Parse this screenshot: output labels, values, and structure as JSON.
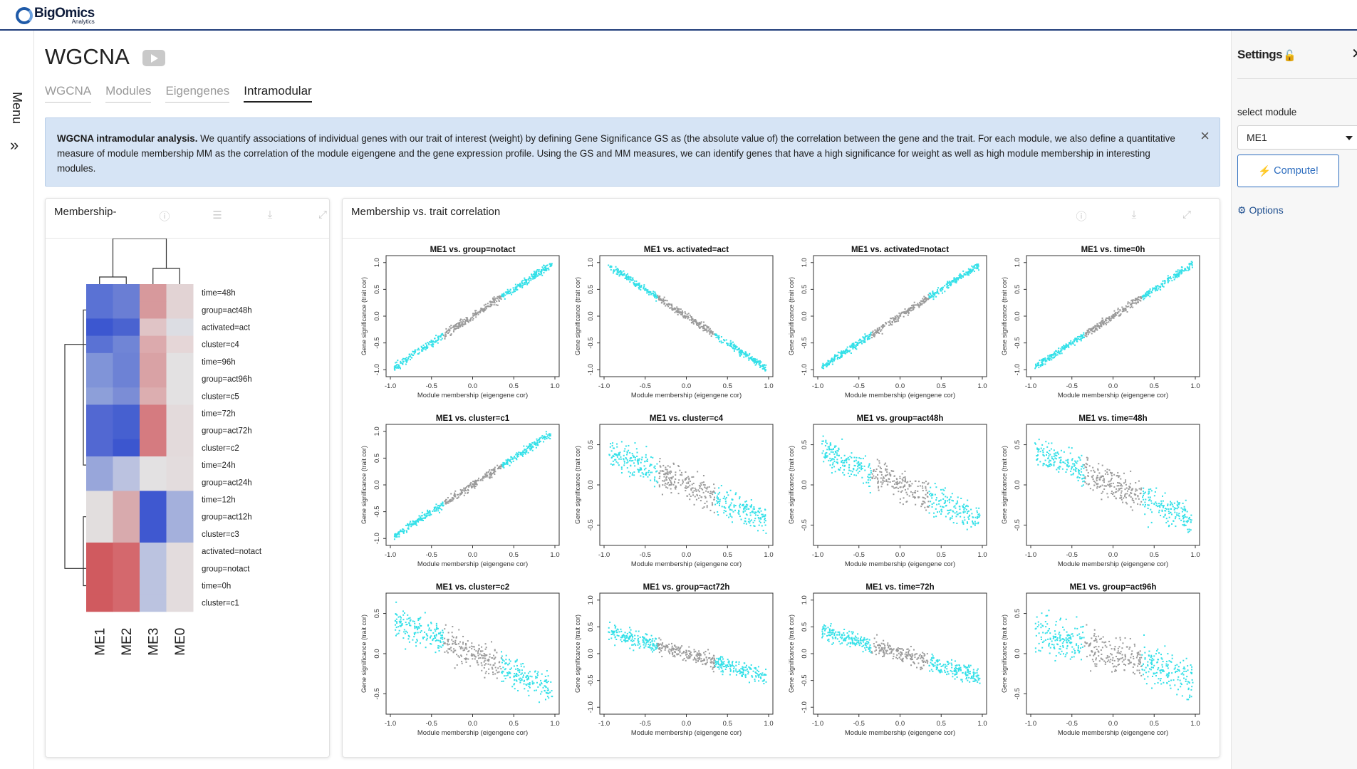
{
  "logo": {
    "brand": "BigOmics",
    "sub": "Analytics"
  },
  "menu": {
    "label": "Menu",
    "chevron": "»"
  },
  "page": {
    "title": "WGCNA"
  },
  "tabs": [
    {
      "label": "WGCNA",
      "active": false
    },
    {
      "label": "Modules",
      "active": false
    },
    {
      "label": "Eigengenes",
      "active": false
    },
    {
      "label": "Intramodular",
      "active": true
    }
  ],
  "info": {
    "bold": "WGCNA intramodular analysis.",
    "text": " We quantify associations of individual genes with our trait of interest (weight) by defining Gene Significance GS as (the absolute value of) the correlation between the gene and the trait. For each module, we also define a quantitative measure of module membership MM as the correlation of the module eigengene and the gene expression profile. Using the GS and MM measures, we can identify genes that have a high significance for weight as well as high module membership in interesting modules.",
    "close_icon": "×"
  },
  "membership_card": {
    "title": "Membership-",
    "row_labels": [
      "time=48h",
      "group=act48h",
      "activated=act",
      "cluster=c4",
      "time=96h",
      "group=act96h",
      "cluster=c5",
      "time=72h",
      "group=act72h",
      "cluster=c2",
      "time=24h",
      "group=act24h",
      "time=12h",
      "group=act12h",
      "cluster=c3",
      "activated=notact",
      "group=notact",
      "time=0h",
      "cluster=c1"
    ],
    "col_labels": [
      "ME1",
      "ME2",
      "ME3",
      "ME0"
    ],
    "heatmap_colors": [
      [
        "#5a72d4",
        "#6a7ed4",
        "#d7999c",
        "#e2d3d4"
      ],
      [
        "#5a72d4",
        "#6a7ed4",
        "#d7999c",
        "#e2d3d4"
      ],
      [
        "#3c57d0",
        "#4a63d0",
        "#e0c4c6",
        "#dcdde3"
      ],
      [
        "#5a72d4",
        "#7085d6",
        "#dcaaad",
        "#e5d6d7"
      ],
      [
        "#8094d8",
        "#6d82d5",
        "#d9a2a5",
        "#e3e1e2"
      ],
      [
        "#8094d8",
        "#6d82d5",
        "#d9a2a5",
        "#e3e1e2"
      ],
      [
        "#8d9fd9",
        "#7b8dd6",
        "#dcaeb0",
        "#e3e1e2"
      ],
      [
        "#5268d2",
        "#4660d0",
        "#d57b80",
        "#e3dadb"
      ],
      [
        "#5268d2",
        "#4660d0",
        "#d57b80",
        "#e3dadb"
      ],
      [
        "#5268d2",
        "#3c56cf",
        "#d57b80",
        "#e3dadb"
      ],
      [
        "#98a6da",
        "#bbc2e0",
        "#e3e1e2",
        "#e3dcdd"
      ],
      [
        "#98a6da",
        "#bbc2e0",
        "#e3e1e2",
        "#e3dcdd"
      ],
      [
        "#e2dede",
        "#d8aaad",
        "#3f58d0",
        "#a4b0dc"
      ],
      [
        "#e2dede",
        "#d8aaad",
        "#3f58d0",
        "#a4b0dc"
      ],
      [
        "#e2dede",
        "#d8aaad",
        "#3f58d0",
        "#a4b0dc"
      ],
      [
        "#d05a5f",
        "#d4686d",
        "#bbc3e0",
        "#e3dcdd"
      ],
      [
        "#d05a5f",
        "#d4686d",
        "#bbc3e0",
        "#e3dcdd"
      ],
      [
        "#d05a5f",
        "#d4686d",
        "#bbc3e0",
        "#e3dcdd"
      ],
      [
        "#d05a5f",
        "#d4686d",
        "#bbc3e0",
        "#e3dcdd"
      ]
    ]
  },
  "corr_card": {
    "title": "Membership vs. trait correlation",
    "xlabel": "Module membership (eigengene cor)",
    "ylabel": "Gene significance (trait cor)",
    "x_ticks": [
      "-1.0",
      "-0.5",
      "0.0",
      "0.5",
      "1.0"
    ],
    "point_colors": {
      "module": "#33e0e8",
      "other": "#9a9a9a"
    },
    "plots": [
      {
        "title": "ME1 vs. group=notact",
        "y_ticks": [
          "-1.0",
          "-0.5",
          "0.0",
          "0.5",
          "1.0"
        ],
        "slope": 1.0,
        "noise": 0.06
      },
      {
        "title": "ME1 vs. activated=act",
        "y_ticks": [
          "-1.0",
          "-0.5",
          "0.0",
          "0.5",
          "1.0"
        ],
        "slope": -1.0,
        "noise": 0.06
      },
      {
        "title": "ME1 vs. activated=notact",
        "y_ticks": [
          "-1.0",
          "-0.5",
          "0.0",
          "0.5",
          "1.0"
        ],
        "slope": 1.0,
        "noise": 0.06
      },
      {
        "title": "ME1 vs. time=0h",
        "y_ticks": [
          "-1.0",
          "-0.5",
          "0.0",
          "0.5",
          "1.0"
        ],
        "slope": 1.0,
        "noise": 0.06
      },
      {
        "title": "ME1 vs. cluster=c1",
        "y_ticks": [
          "-1.0",
          "-0.5",
          "0.0",
          "0.5",
          "1.0"
        ],
        "slope": 1.0,
        "noise": 0.06
      },
      {
        "title": "ME1 vs. cluster=c4",
        "y_ticks": [
          "-0.5",
          "0.0",
          "0.5"
        ],
        "slope": -0.45,
        "noise": 0.16
      },
      {
        "title": "ME1 vs. group=act48h",
        "y_ticks": [
          "-0.5",
          "0.0",
          "0.5"
        ],
        "slope": -0.45,
        "noise": 0.16
      },
      {
        "title": "ME1 vs. time=48h",
        "y_ticks": [
          "-0.5",
          "0.0",
          "0.5"
        ],
        "slope": -0.45,
        "noise": 0.16
      },
      {
        "title": "ME1 vs. cluster=c2",
        "y_ticks": [
          "-0.5",
          "0.0",
          "0.5"
        ],
        "slope": -0.45,
        "noise": 0.15
      },
      {
        "title": "ME1 vs. group=act72h",
        "y_ticks": [
          "-1.0",
          "-0.5",
          "0.0",
          "0.5",
          "1.0"
        ],
        "slope": -0.45,
        "noise": 0.13
      },
      {
        "title": "ME1 vs. time=72h",
        "y_ticks": [
          "-1.0",
          "-0.5",
          "0.0",
          "0.5",
          "1.0"
        ],
        "slope": -0.45,
        "noise": 0.13
      },
      {
        "title": "ME1 vs. group=act96h",
        "y_ticks": [
          "-0.5",
          "0.0",
          "0.5"
        ],
        "slope": -0.3,
        "noise": 0.2
      }
    ]
  },
  "settings": {
    "title": "Settings",
    "lock_icon": "🔓",
    "close_icon": "✕",
    "select_label": "select module",
    "selected_module": "ME1",
    "compute_label": "Compute!",
    "compute_icon": "⚡",
    "options_label": "Options",
    "options_icon": "⚙"
  },
  "tool_icons": [
    "info-icon",
    "list-icon",
    "download-icon",
    "expand-icon"
  ]
}
